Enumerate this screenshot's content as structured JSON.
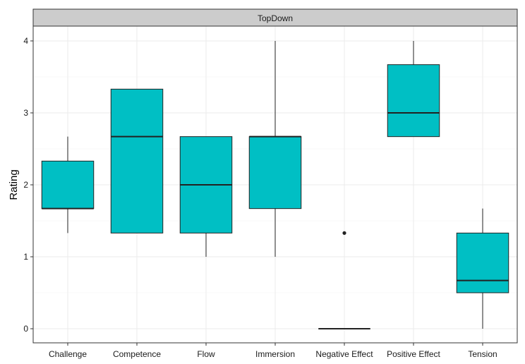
{
  "chart_data": {
    "type": "boxplot",
    "facet_label": "TopDown",
    "xlabel": "",
    "ylabel": "Rating",
    "ylim": [
      -0.2,
      4.2
    ],
    "yticks": [
      0,
      1,
      2,
      3,
      4
    ],
    "grid": true,
    "categories": [
      "Challenge",
      "Competence",
      "Flow",
      "Immersion",
      "Negative Effect",
      "Positive Effect",
      "Tension"
    ],
    "boxes": [
      {
        "min": 1.33,
        "q1": 1.67,
        "median": 1.67,
        "q3": 2.33,
        "max": 2.67,
        "outliers": []
      },
      {
        "min": 1.33,
        "q1": 1.33,
        "median": 2.67,
        "q3": 3.33,
        "max": 3.33,
        "outliers": []
      },
      {
        "min": 1.0,
        "q1": 1.33,
        "median": 2.0,
        "q3": 2.67,
        "max": 2.67,
        "outliers": []
      },
      {
        "min": 1.0,
        "q1": 1.67,
        "median": 2.67,
        "q3": 2.67,
        "max": 4.0,
        "outliers": []
      },
      {
        "min": 0.0,
        "q1": 0.0,
        "median": 0.0,
        "q3": 0.0,
        "max": 0.0,
        "outliers": [
          1.33
        ]
      },
      {
        "min": 2.67,
        "q1": 2.67,
        "median": 3.0,
        "q3": 3.67,
        "max": 4.0,
        "outliers": []
      },
      {
        "min": 0.0,
        "q1": 0.5,
        "median": 0.67,
        "q3": 1.33,
        "max": 1.67,
        "outliers": []
      }
    ],
    "colors": {
      "box_fill": "#00BFC4",
      "line": "#222222",
      "strip": "#CCCCCC",
      "grid_major": "#EBEBEB",
      "grid_minor": "#F5F5F5",
      "panel_border": "#333333"
    }
  }
}
